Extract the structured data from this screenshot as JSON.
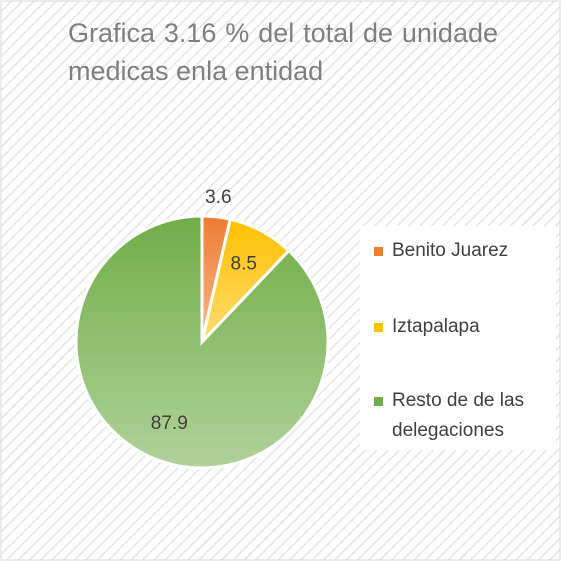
{
  "chart_data": {
    "type": "pie",
    "title": "Grafica 3.16 % del total de unidade medicas enla entidad",
    "categories": [
      "Benito Juarez",
      "Iztapalapa",
      "Resto de de las delegaciones"
    ],
    "values": [
      3.6,
      8.5,
      87.9
    ],
    "colors": [
      "#ed7d31",
      "#ffc000",
      "#70ad47"
    ],
    "legend": "right"
  }
}
